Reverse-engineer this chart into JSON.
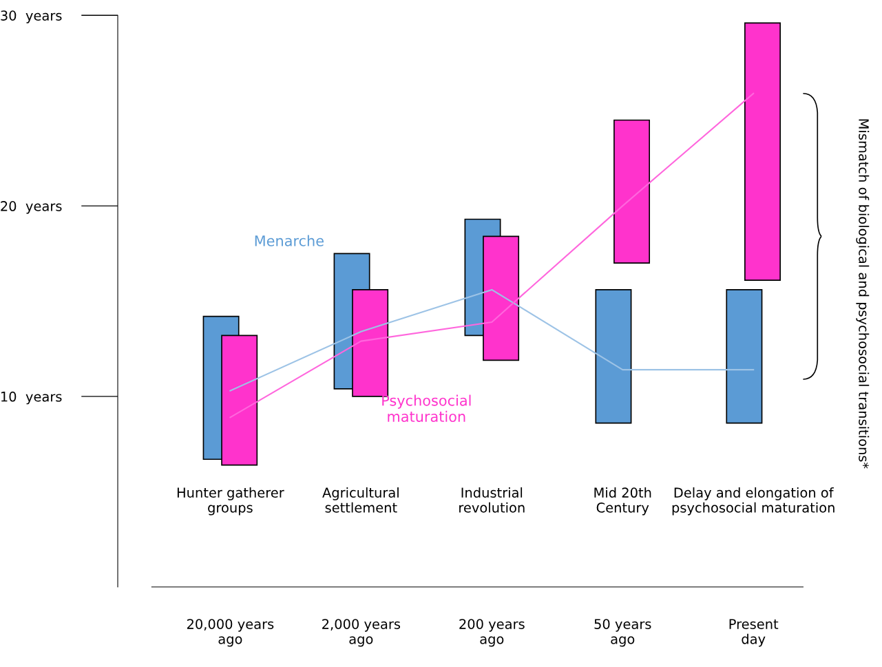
{
  "chart_data": {
    "type": "bar",
    "categories": [
      "Hunter gatherer\ngroups",
      "Agricultural\nsettlement",
      "Industrial\nrevolution",
      "Mid 20th\nCentury",
      "Delay and elongation of\npsychosocial maturation"
    ],
    "series": [
      {
        "type": "line",
        "color": "#9dc3e6",
        "values": [
          10.3,
          13.4,
          15.6,
          11.4,
          11.4
        ]
      },
      {
        "type": "line",
        "color": "#ff66dd",
        "values": [
          8.9,
          12.9,
          13.9,
          20.0,
          25.9
        ]
      },
      {
        "name": "Menarche",
        "color": "#5b9bd5",
        "base": [
          6.7,
          10.4,
          13.2,
          8.6,
          8.6
        ],
        "values": [
          7.5,
          7.1,
          6.1,
          7.0,
          7.0
        ]
      },
      {
        "name": "Psychosocial\nmaturation",
        "color": "#ff33cc",
        "base": [
          6.4,
          10.0,
          11.9,
          17.0,
          16.1
        ],
        "values": [
          6.8,
          5.6,
          6.5,
          7.5,
          13.5
        ]
      }
    ],
    "ylim": [
      0,
      30
    ],
    "yticks": [
      {
        "value": 10,
        "label": "10  years"
      },
      {
        "value": 20,
        "label": "20  years"
      },
      {
        "value": 30,
        "label": "30  years"
      }
    ],
    "grid": false,
    "legend": false,
    "annotations": [
      "20,000 years\nago",
      "2,000 years\nago",
      "200 years\nago",
      "50 years\nago",
      "Present\nday",
      "Mismatch of biological and psychosocial transitions*"
    ]
  }
}
